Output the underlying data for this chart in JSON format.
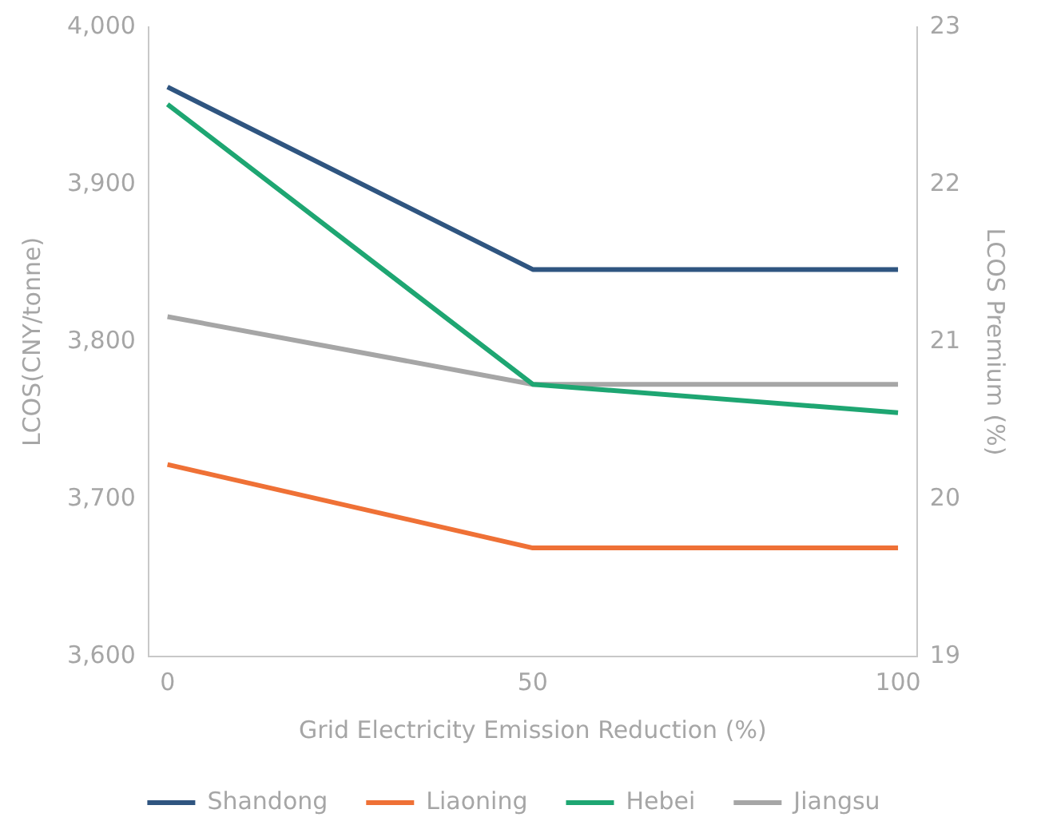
{
  "chart_data": {
    "type": "line",
    "xlabel": "Grid Electricity Emission Reduction (%)",
    "ylabel": "LCOS(CNY/tonne)",
    "y2label": "LCOS Premium (%)",
    "x": [
      0,
      50,
      100
    ],
    "xlim": [
      -2.6,
      102.6
    ],
    "xticks": [
      0,
      50,
      100
    ],
    "ylim": [
      3600,
      4000
    ],
    "yticks": [
      {
        "value": 3600,
        "label": "3,600"
      },
      {
        "value": 3700,
        "label": "3,700"
      },
      {
        "value": 3800,
        "label": "3,800"
      },
      {
        "value": 3900,
        "label": "3,900"
      },
      {
        "value": 4000,
        "label": "4,000"
      }
    ],
    "y2lim": [
      19,
      23
    ],
    "y2ticks": [
      19,
      20,
      21,
      22,
      23
    ],
    "series": [
      {
        "name": "Shandong",
        "color": "#2f5580",
        "values": [
          3962,
          3846,
          3846
        ]
      },
      {
        "name": "Liaoning",
        "color": "#ef7136",
        "values": [
          3722,
          3669,
          3669
        ]
      },
      {
        "name": "Hebei",
        "color": "#1ea672",
        "values": [
          3951,
          3773,
          3755
        ]
      },
      {
        "name": "Jiangsu",
        "color": "#a6a6a6",
        "values": [
          3816,
          3773,
          3773
        ]
      }
    ],
    "grid": false,
    "legend": "bottom",
    "marker": "none",
    "line_style": "solid"
  }
}
